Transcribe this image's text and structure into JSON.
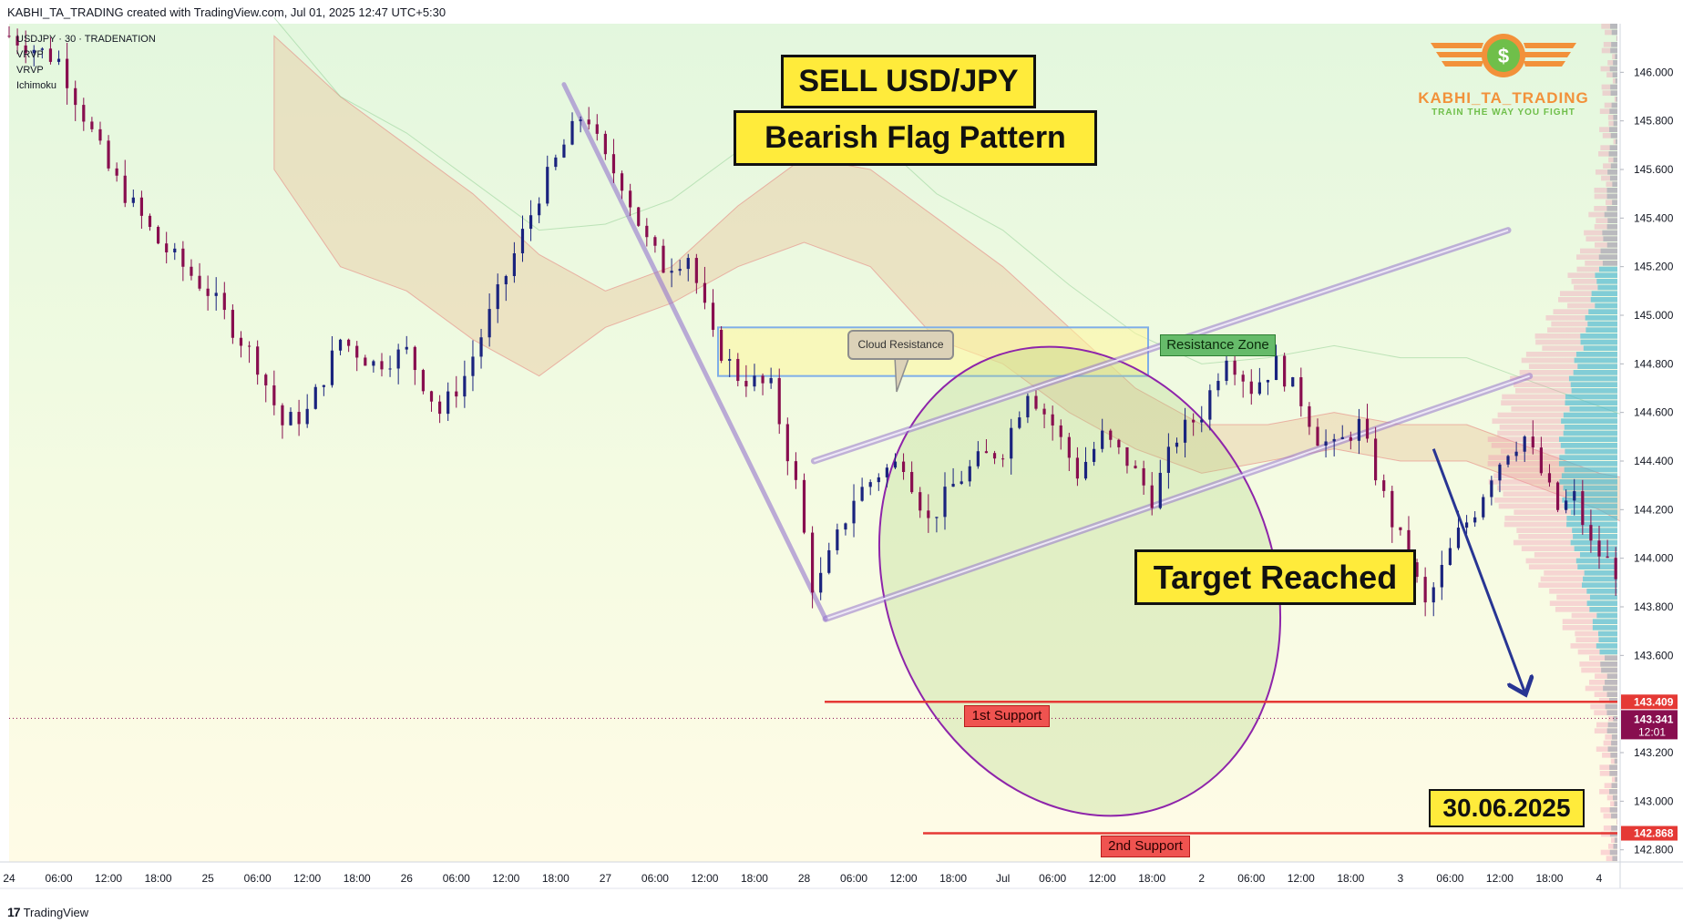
{
  "header": {
    "caption": "KABHI_TA_TRADING created with TradingView.com, Jul 01, 2025 12:47 UTC+5:30",
    "symbol_line": "USDJPY · 30 · TRADENATION",
    "indicators": [
      "VRVP",
      "VRVP",
      "Ichimoku"
    ]
  },
  "annotations": {
    "title1": "SELL USD/JPY",
    "title2": "Bearish Flag Pattern",
    "target": "Target Reached",
    "date": "30.06.2025",
    "cloud_resistance": "Cloud Resistance",
    "resistance_zone": "Resistance Zone",
    "support1": "1st Support",
    "support2": "2nd Support"
  },
  "logo": {
    "name": "KABHI_TA_TRADING",
    "tagline": "TRAIN THE WAY YOU FIGHT",
    "symbol": "$"
  },
  "brand": {
    "text": "TradingView",
    "mark": "17"
  },
  "colors": {
    "bull_candle": "#1a237e",
    "bear_candle": "#880e4f",
    "support_line": "#e53935",
    "flag_channel": "#9575cd",
    "target_ellipse": "#8e24aa",
    "arrow": "#283593",
    "resistance_zone": "#7faee8",
    "support_label": "#ef5350"
  },
  "chart_data": {
    "type": "candlestick",
    "symbol": "USDJPY",
    "timeframe": "30",
    "ylim": [
      142.75,
      146.2
    ],
    "y_ticks": [
      146.0,
      145.8,
      145.6,
      145.4,
      145.2,
      145.0,
      144.8,
      144.6,
      144.4,
      144.2,
      144.0,
      143.8,
      143.6,
      143.2,
      143.0,
      142.8
    ],
    "price_marks": {
      "support1": 143.409,
      "current": 143.341,
      "support2": 142.868,
      "countdown": "12:01"
    },
    "x_ticks": [
      "24",
      "06:00",
      "12:00",
      "18:00",
      "25",
      "06:00",
      "12:00",
      "18:00",
      "26",
      "06:00",
      "12:00",
      "18:00",
      "27",
      "06:00",
      "12:00",
      "18:00",
      "28",
      "06:00",
      "12:00",
      "18:00",
      "Jul",
      "06:00",
      "12:00",
      "18:00",
      "2",
      "06:00",
      "12:00",
      "18:00",
      "3",
      "06:00",
      "12:00",
      "18:00",
      "4"
    ],
    "price_path": [
      [
        0,
        146.15
      ],
      [
        3,
        146.05
      ],
      [
        6,
        145.6
      ],
      [
        9,
        145.3
      ],
      [
        12,
        145.1
      ],
      [
        15,
        144.8
      ],
      [
        16.5,
        144.55
      ],
      [
        18,
        144.6
      ],
      [
        20,
        144.9
      ],
      [
        22,
        144.8
      ],
      [
        24,
        144.85
      ],
      [
        26,
        144.6
      ],
      [
        27.5,
        144.75
      ],
      [
        29,
        145.0
      ],
      [
        30.5,
        145.25
      ],
      [
        32,
        145.5
      ],
      [
        33.5,
        145.7
      ],
      [
        34.8,
        145.85
      ],
      [
        35.8,
        145.65
      ],
      [
        37,
        145.55
      ],
      [
        38.5,
        145.3
      ],
      [
        39.5,
        145.2
      ],
      [
        41,
        145.25
      ],
      [
        42.5,
        144.9
      ],
      [
        44,
        144.75
      ],
      [
        46,
        144.7
      ],
      [
        47.5,
        144.3
      ],
      [
        48.6,
        143.85
      ],
      [
        49.5,
        144.0
      ],
      [
        51,
        144.25
      ],
      [
        52.5,
        144.35
      ],
      [
        54,
        144.4
      ],
      [
        55.5,
        144.15
      ],
      [
        57,
        144.3
      ],
      [
        58.5,
        144.4
      ],
      [
        60,
        144.45
      ],
      [
        61.5,
        144.7
      ],
      [
        63,
        144.55
      ],
      [
        64.5,
        144.35
      ],
      [
        66,
        144.5
      ],
      [
        67.5,
        144.4
      ],
      [
        69,
        144.25
      ],
      [
        70.5,
        144.5
      ],
      [
        72,
        144.6
      ],
      [
        73.5,
        144.85
      ],
      [
        75,
        144.7
      ],
      [
        76.5,
        144.8
      ],
      [
        78,
        144.65
      ],
      [
        79,
        144.5
      ],
      [
        80,
        144.45
      ],
      [
        81.5,
        144.55
      ],
      [
        82.5,
        144.35
      ],
      [
        83.5,
        144.15
      ],
      [
        84.5,
        144.0
      ],
      [
        85.5,
        143.8
      ],
      [
        86.5,
        143.95
      ],
      [
        87.5,
        144.1
      ],
      [
        88.5,
        144.2
      ],
      [
        89.5,
        144.35
      ],
      [
        90.5,
        144.45
      ],
      [
        91.5,
        144.5
      ],
      [
        92.5,
        144.35
      ],
      [
        93.5,
        144.2
      ],
      [
        94.5,
        144.25
      ],
      [
        95.5,
        144.05
      ],
      [
        97,
        143.95
      ],
      [
        98,
        143.75
      ],
      [
        99,
        143.6
      ],
      [
        100,
        143.55
      ],
      [
        101,
        143.8
      ],
      [
        102,
        143.9
      ],
      [
        103,
        143.65
      ],
      [
        104,
        143.6
      ],
      [
        104.8,
        143.6
      ],
      [
        105.3,
        143.35
      ]
    ],
    "flag_channel": {
      "upper": [
        [
          48.6,
          144.4
        ],
        [
          90.5,
          145.35
        ]
      ],
      "lower": [
        [
          49.3,
          143.75
        ],
        [
          91.8,
          144.75
        ]
      ]
    },
    "pole": [
      [
        33.5,
        145.95
      ],
      [
        49.3,
        143.75
      ]
    ],
    "resistance_zone": [
      144.75,
      144.95
    ],
    "ichimoku_cloud": [
      [
        16,
        146.15,
        145.6
      ],
      [
        20,
        145.9,
        145.2
      ],
      [
        24,
        145.7,
        145.1
      ],
      [
        28,
        145.5,
        144.9
      ],
      [
        32,
        145.25,
        144.75
      ],
      [
        36,
        145.1,
        144.95
      ],
      [
        40,
        145.2,
        145.05
      ],
      [
        44,
        145.45,
        145.2
      ],
      [
        48,
        145.65,
        145.3
      ],
      [
        52,
        145.6,
        145.2
      ],
      [
        56,
        145.4,
        144.9
      ],
      [
        60,
        145.2,
        144.8
      ],
      [
        64,
        144.95,
        144.6
      ],
      [
        68,
        144.7,
        144.45
      ],
      [
        72,
        144.55,
        144.35
      ],
      [
        76,
        144.55,
        144.4
      ],
      [
        80,
        144.6,
        144.45
      ],
      [
        84,
        144.55,
        144.4
      ],
      [
        88,
        144.55,
        144.4
      ],
      [
        92,
        144.45,
        144.3
      ],
      [
        96,
        144.35,
        144.2
      ],
      [
        100,
        144.3,
        144.05
      ],
      [
        104,
        144.2,
        143.9
      ],
      [
        108,
        144.05,
        143.8
      ],
      [
        111,
        143.8,
        143.6
      ]
    ],
    "target_arrows": [
      [
        [
          86,
          144.45
        ],
        [
          91.5,
          143.45
        ]
      ],
      [
        [
          106,
          143.35
        ],
        [
          109.5,
          142.88
        ]
      ]
    ]
  }
}
